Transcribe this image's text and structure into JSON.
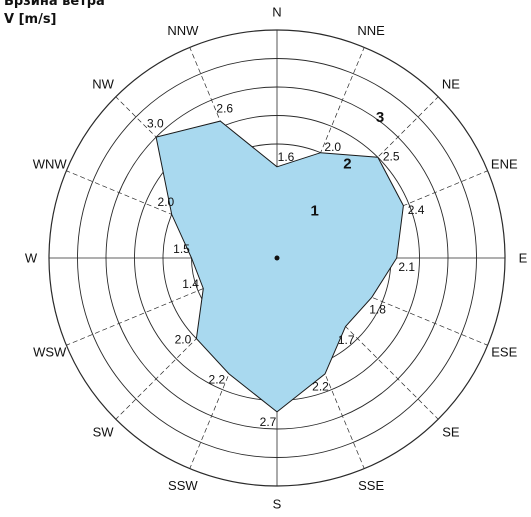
{
  "chart_data": {
    "type": "radar",
    "title": "Брзина ветра",
    "unit_label": "V [m/s]",
    "directions": [
      "N",
      "NNE",
      "NE",
      "ENE",
      "E",
      "ESE",
      "SE",
      "SSE",
      "S",
      "SSW",
      "SW",
      "WSW",
      "W",
      "WNW",
      "NW",
      "NNW"
    ],
    "values": [
      1.6,
      2.0,
      2.5,
      2.4,
      2.1,
      1.8,
      1.7,
      2.2,
      2.7,
      2.2,
      2.0,
      1.4,
      1.5,
      2.0,
      3.0,
      2.6
    ],
    "value_labels": [
      "1.6",
      "2.0",
      "2.5",
      "2.4",
      "2.1",
      "1.8",
      "1.7",
      "2.2",
      "2.7",
      "2.2",
      "2.0",
      "1.4",
      "1.5",
      "2.0",
      "3.0",
      "2.6"
    ],
    "ring_labels": [
      "1",
      "2",
      "3"
    ],
    "ring_values": [
      1,
      2,
      3
    ],
    "rmax": 4,
    "grid": true,
    "fill_color": "#a9d9ef",
    "stroke_color": "#1a1a1a"
  }
}
